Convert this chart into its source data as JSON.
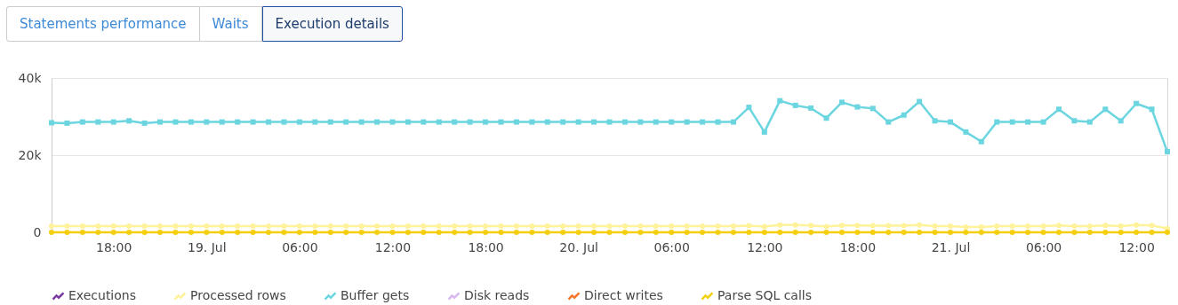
{
  "chart_data": {
    "type": "line",
    "annotations": [
      "Statements performance",
      "Waits",
      "Execution details"
    ],
    "x": [
      "--07-18T14:00",
      "--07-18T15:00",
      "--07-18T16:00",
      "--07-18T17:00",
      "--07-18T18:00",
      "--07-18T19:00",
      "--07-18T20:00",
      "--07-18T21:00",
      "--07-18T22:00",
      "--07-18T23:00",
      "--07-19T00:00",
      "--07-19T01:00",
      "--07-19T02:00",
      "--07-19T03:00",
      "--07-19T04:00",
      "--07-19T05:00",
      "--07-19T06:00",
      "--07-19T07:00",
      "--07-19T08:00",
      "--07-19T09:00",
      "--07-19T10:00",
      "--07-19T11:00",
      "--07-19T12:00",
      "--07-19T13:00",
      "--07-19T14:00",
      "--07-19T15:00",
      "--07-19T16:00",
      "--07-19T17:00",
      "--07-19T18:00",
      "--07-19T19:00",
      "--07-19T20:00",
      "--07-19T21:00",
      "--07-19T22:00",
      "--07-19T23:00",
      "--07-20T00:00",
      "--07-20T01:00",
      "--07-20T02:00",
      "--07-20T03:00",
      "--07-20T04:00",
      "--07-20T05:00",
      "--07-20T06:00",
      "--07-20T07:00",
      "--07-20T08:00",
      "--07-20T09:00",
      "--07-20T10:00",
      "--07-20T11:00",
      "--07-20T12:00",
      "--07-20T13:00",
      "--07-20T14:00",
      "--07-20T15:00",
      "--07-20T16:00",
      "--07-20T17:00",
      "--07-20T18:00",
      "--07-20T19:00",
      "--07-20T20:00",
      "--07-20T21:00",
      "--07-20T22:00",
      "--07-20T23:00",
      "--07-21T00:00",
      "--07-21T01:00",
      "--07-21T02:00",
      "--07-21T03:00",
      "--07-21T04:00",
      "--07-21T05:00",
      "--07-21T06:00",
      "--07-21T07:00",
      "--07-21T08:00",
      "--07-21T09:00",
      "--07-21T10:00",
      "--07-21T11:00",
      "--07-21T12:00",
      "--07-21T13:00",
      "--07-21T14:00"
    ],
    "series": [
      {
        "name": "Executions",
        "color": "#7b3aa0",
        "values": [
          null,
          null,
          null,
          null,
          null,
          null,
          null,
          null,
          null,
          null,
          null,
          null,
          null,
          null,
          null,
          null,
          null,
          null,
          null,
          null,
          null,
          null,
          null,
          null,
          null,
          null,
          null,
          null,
          null,
          null,
          null,
          null,
          null,
          null,
          null,
          null,
          null,
          null,
          null,
          null,
          null,
          null,
          null,
          null,
          null,
          null,
          null,
          null,
          null,
          null,
          null,
          null,
          null,
          null,
          null,
          null,
          null,
          null,
          null,
          null,
          null,
          null,
          null,
          null,
          null,
          null,
          null,
          null,
          null,
          null,
          null,
          null,
          null
        ]
      },
      {
        "name": "Processed rows",
        "color": "#fff29a",
        "marker": "circle",
        "values": [
          1600,
          1600,
          1600,
          1600,
          1600,
          1600,
          1600,
          1600,
          1600,
          1600,
          1600,
          1600,
          1600,
          1600,
          1600,
          1600,
          1600,
          1600,
          1600,
          1600,
          1600,
          1600,
          1600,
          1600,
          1600,
          1600,
          1600,
          1600,
          1600,
          1600,
          1600,
          1600,
          1600,
          1600,
          1600,
          1600,
          1600,
          1600,
          1600,
          1600,
          1600,
          1600,
          1600,
          1600,
          1600,
          1700,
          1500,
          1900,
          1900,
          1800,
          1500,
          1800,
          1800,
          1700,
          1700,
          1700,
          1900,
          1600,
          1600,
          1400,
          1400,
          1600,
          1600,
          1600,
          1600,
          1800,
          1600,
          1600,
          1800,
          1600,
          1900,
          1800,
          1000
        ]
      },
      {
        "name": "Buffer gets",
        "color": "#6bd5e0",
        "marker": "square",
        "values": [
          28400,
          28300,
          28600,
          28600,
          28600,
          28900,
          28300,
          28600,
          28600,
          28600,
          28600,
          28600,
          28600,
          28600,
          28600,
          28600,
          28600,
          28600,
          28600,
          28600,
          28600,
          28600,
          28600,
          28600,
          28600,
          28600,
          28600,
          28600,
          28600,
          28600,
          28600,
          28600,
          28600,
          28600,
          28600,
          28600,
          28600,
          28600,
          28600,
          28600,
          28600,
          28600,
          28600,
          28600,
          28600,
          32400,
          26000,
          34100,
          32900,
          32200,
          29600,
          33700,
          32500,
          32100,
          28600,
          30400,
          33900,
          28900,
          28600,
          26000,
          23500,
          28600,
          28600,
          28600,
          28600,
          31900,
          28900,
          28600,
          31900,
          28900,
          33400,
          31900,
          20900
        ]
      },
      {
        "name": "Disk reads",
        "color": "#d8b8f0",
        "values": [
          null,
          null,
          null,
          null,
          null,
          null,
          null,
          null,
          null,
          null,
          null,
          null,
          null,
          null,
          null,
          null,
          null,
          null,
          null,
          null,
          null,
          null,
          null,
          null,
          null,
          null,
          null,
          null,
          null,
          null,
          null,
          null,
          null,
          null,
          null,
          null,
          null,
          null,
          null,
          null,
          null,
          null,
          null,
          null,
          null,
          null,
          null,
          null,
          null,
          null,
          null,
          null,
          null,
          null,
          null,
          null,
          null,
          null,
          null,
          null,
          null,
          null,
          null,
          null,
          null,
          null,
          null,
          null,
          null,
          null,
          null,
          null,
          null
        ]
      },
      {
        "name": "Direct writes",
        "color": "#f5772b",
        "values": [
          null,
          null,
          null,
          null,
          null,
          null,
          null,
          null,
          null,
          null,
          null,
          null,
          null,
          null,
          null,
          null,
          null,
          null,
          null,
          null,
          null,
          null,
          null,
          null,
          null,
          null,
          null,
          null,
          null,
          null,
          null,
          null,
          null,
          null,
          null,
          null,
          null,
          null,
          null,
          null,
          null,
          null,
          null,
          null,
          null,
          null,
          null,
          null,
          null,
          null,
          null,
          null,
          null,
          null,
          null,
          null,
          null,
          null,
          null,
          null,
          null,
          null,
          null,
          null,
          null,
          null,
          null,
          null,
          null,
          null,
          null,
          null,
          null
        ]
      },
      {
        "name": "Parse SQL calls",
        "color": "#f5cf0f",
        "marker": "circle",
        "values": [
          0,
          0,
          0,
          0,
          0,
          0,
          0,
          0,
          0,
          0,
          0,
          0,
          0,
          0,
          0,
          0,
          0,
          0,
          0,
          0,
          0,
          0,
          0,
          0,
          0,
          0,
          0,
          0,
          0,
          0,
          0,
          0,
          0,
          0,
          0,
          0,
          0,
          0,
          0,
          0,
          0,
          0,
          0,
          0,
          0,
          0,
          0,
          0,
          0,
          0,
          0,
          0,
          0,
          0,
          0,
          0,
          0,
          0,
          0,
          0,
          0,
          0,
          0,
          0,
          0,
          0,
          0,
          0,
          0,
          0,
          0,
          0,
          0
        ]
      }
    ],
    "xlim": [
      "--07-18T14:00",
      "--07-21T14:00"
    ],
    "xticks": [
      {
        "value": "--07-18T18:00",
        "label": "18:00"
      },
      {
        "value": "--07-19T00:00",
        "label": "19. Jul"
      },
      {
        "value": "--07-19T06:00",
        "label": "06:00"
      },
      {
        "value": "--07-19T12:00",
        "label": "12:00"
      },
      {
        "value": "--07-19T18:00",
        "label": "18:00"
      },
      {
        "value": "--07-20T00:00",
        "label": "20. Jul"
      },
      {
        "value": "--07-20T06:00",
        "label": "06:00"
      },
      {
        "value": "--07-20T12:00",
        "label": "12:00"
      },
      {
        "value": "--07-20T18:00",
        "label": "18:00"
      },
      {
        "value": "--07-21T00:00",
        "label": "21. Jul"
      },
      {
        "value": "--07-21T06:00",
        "label": "06:00"
      },
      {
        "value": "--07-21T12:00",
        "label": "12:00"
      }
    ],
    "ylim": [
      0,
      40000
    ],
    "yticks": [
      0,
      {
        "value": 20000,
        "label": "20k"
      },
      {
        "value": 40000,
        "label": "40k"
      }
    ],
    "grid": "y",
    "legend": "bottom",
    "line_style": "solid"
  }
}
